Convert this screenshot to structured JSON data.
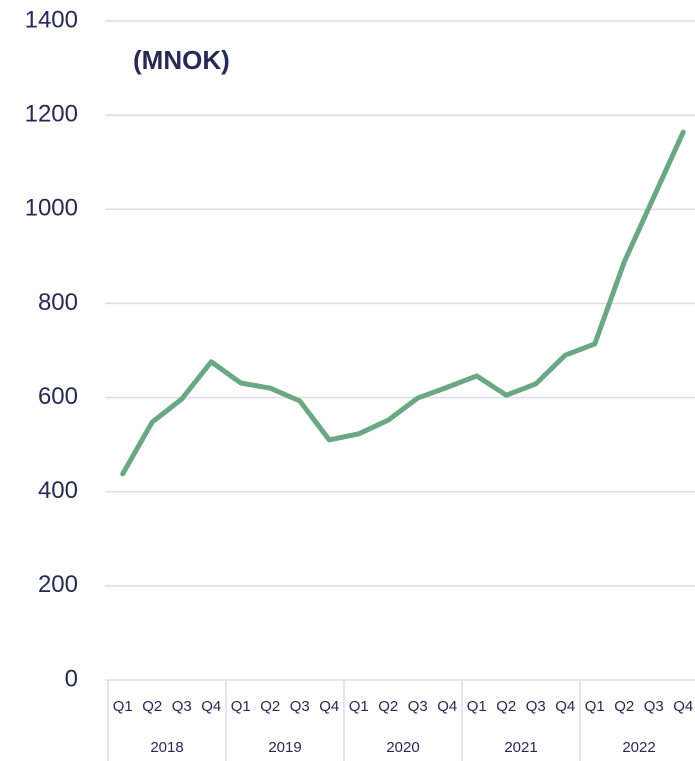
{
  "chart_data": {
    "type": "line",
    "title": "(MNOK)",
    "categories": [
      "Q1",
      "Q2",
      "Q3",
      "Q4",
      "Q1",
      "Q2",
      "Q3",
      "Q4",
      "Q1",
      "Q2",
      "Q3",
      "Q4",
      "Q1",
      "Q2",
      "Q3",
      "Q4",
      "Q1",
      "Q2",
      "Q3",
      "Q4"
    ],
    "groups": [
      "2018",
      "2019",
      "2020",
      "2021",
      "2022"
    ],
    "series": [
      {
        "color": "#6aa883",
        "values": [
          438,
          548,
          597,
          676,
          631,
          620,
          593,
          510,
          523,
          552,
          599,
          622,
          646,
          605,
          629,
          690,
          714,
          888,
          1026,
          1164
        ]
      }
    ],
    "ylim": [
      0,
      1400
    ],
    "yticks": [
      0,
      200,
      400,
      600,
      800,
      1000,
      1200,
      1400
    ],
    "grid": true
  }
}
